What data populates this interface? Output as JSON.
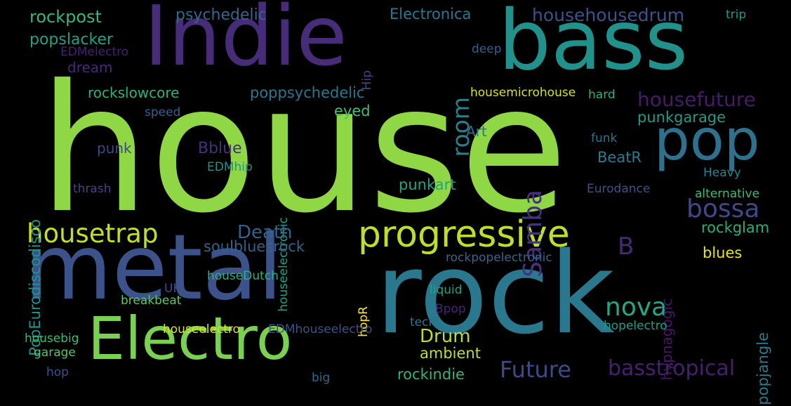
{
  "cloud": {
    "words": [
      {
        "text": "house",
        "color": "#8fd744",
        "vertical": false
      },
      {
        "text": "rock",
        "color": "#2a788e",
        "vertical": false
      },
      {
        "text": "metal",
        "color": "#3b528b",
        "vertical": false
      },
      {
        "text": "Indie",
        "color": "#472c7a",
        "vertical": false
      },
      {
        "text": "bass",
        "color": "#21918c",
        "vertical": false
      },
      {
        "text": "Electro",
        "color": "#7ad151",
        "vertical": false
      },
      {
        "text": "pop",
        "color": "#2c728e",
        "vertical": false
      },
      {
        "text": "progressive",
        "color": "#bddf26",
        "vertical": false
      },
      {
        "text": "housetrap",
        "color": "#c2df23",
        "vertical": false
      },
      {
        "text": "bossa",
        "color": "#3e4989",
        "vertical": false
      },
      {
        "text": "nova",
        "color": "#22a884",
        "vertical": false
      },
      {
        "text": "Future",
        "color": "#3e4989",
        "vertical": false
      },
      {
        "text": "basstropical",
        "color": "#481f70",
        "vertical": false
      },
      {
        "text": "Samba",
        "color": "#46327e",
        "vertical": true
      },
      {
        "text": "room",
        "color": "#27808e",
        "vertical": true
      },
      {
        "text": "B",
        "color": "#482878",
        "vertical": false
      },
      {
        "text": "Drum",
        "color": "#bade28",
        "vertical": false
      },
      {
        "text": "housefuture",
        "color": "#481a6c",
        "vertical": false
      },
      {
        "text": "househousedrum",
        "color": "#3b528b",
        "vertical": false
      },
      {
        "text": "rockpost",
        "color": "#35b779",
        "vertical": false
      },
      {
        "text": "psychedelic",
        "color": "#31688e",
        "vertical": false
      },
      {
        "text": "Electronica",
        "color": "#2a788e",
        "vertical": false
      },
      {
        "text": "trip",
        "color": "#1f988b",
        "vertical": false
      },
      {
        "text": "popslacker",
        "color": "#1fa187",
        "vertical": false
      },
      {
        "text": "EDMelectro",
        "color": "#482071",
        "vertical": false
      },
      {
        "text": "dream",
        "color": "#482878",
        "vertical": false
      },
      {
        "text": "PopEurodiscodisco",
        "color": "#1f948c",
        "vertical": true
      },
      {
        "text": "Hip",
        "color": "#404688",
        "vertical": true
      },
      {
        "text": "deep",
        "color": "#355f8d",
        "vertical": false
      },
      {
        "text": "rockslowcore",
        "color": "#2db27d",
        "vertical": false
      },
      {
        "text": "poppsychedelic",
        "color": "#2a788e",
        "vertical": false
      },
      {
        "text": "housemicrohouse",
        "color": "#d8e219",
        "vertical": false
      },
      {
        "text": "hard",
        "color": "#2ab07f",
        "vertical": false
      },
      {
        "text": "speed",
        "color": "#33638d",
        "vertical": false
      },
      {
        "text": "eyed",
        "color": "#44bf70",
        "vertical": false
      },
      {
        "text": "punkgarage",
        "color": "#1e9b8a",
        "vertical": false
      },
      {
        "text": "Art",
        "color": "#2c728e",
        "vertical": false
      },
      {
        "text": "funk",
        "color": "#2c728e",
        "vertical": false
      },
      {
        "text": "punk",
        "color": "#3e4989",
        "vertical": false
      },
      {
        "text": "Bblue",
        "color": "#472f7d",
        "vertical": false
      },
      {
        "text": "EDMhip",
        "color": "#21918c",
        "vertical": false
      },
      {
        "text": "BeatR",
        "color": "#287c8e",
        "vertical": false
      },
      {
        "text": "Heavy",
        "color": "#25848e",
        "vertical": false
      },
      {
        "text": "thrash",
        "color": "#414487",
        "vertical": false
      },
      {
        "text": "houseelectronic",
        "color": "#1fa187",
        "vertical": true
      },
      {
        "text": "punkart",
        "color": "#20a486",
        "vertical": false
      },
      {
        "text": "Eurodance",
        "color": "#3b528b",
        "vertical": false
      },
      {
        "text": "alternative",
        "color": "#3bbb75",
        "vertical": false
      },
      {
        "text": "rockglam",
        "color": "#28ae80",
        "vertical": false
      },
      {
        "text": "hypnagogic",
        "color": "#481769",
        "vertical": true
      },
      {
        "text": "Death",
        "color": "#34618d",
        "vertical": false
      },
      {
        "text": "soulbluesrock",
        "color": "#33638d",
        "vertical": false
      },
      {
        "text": "blues",
        "color": "#e5e419",
        "vertical": false
      },
      {
        "text": "popjangle",
        "color": "#297b8e",
        "vertical": true
      },
      {
        "text": "rockpopelectronic",
        "color": "#31688e",
        "vertical": false
      },
      {
        "text": "houseDutch",
        "color": "#2db27d",
        "vertical": false
      },
      {
        "text": "UK",
        "color": "#3b528b",
        "vertical": false
      },
      {
        "text": "liquid",
        "color": "#20a386",
        "vertical": false
      },
      {
        "text": "hopR",
        "color": "#fde725",
        "vertical": true
      },
      {
        "text": "breakbeat",
        "color": "#5ec962",
        "vertical": false
      },
      {
        "text": "Bpop",
        "color": "#482475",
        "vertical": false
      },
      {
        "text": "tech",
        "color": "#2c728e",
        "vertical": false
      },
      {
        "text": "hopelectro",
        "color": "#1f9e89",
        "vertical": false
      },
      {
        "text": "housebig",
        "color": "#3bbb75",
        "vertical": false
      },
      {
        "text": "houseelectro",
        "color": "#dde318",
        "vertical": false
      },
      {
        "text": "EDMhouseelectro",
        "color": "#3b528b",
        "vertical": false
      },
      {
        "text": "garage",
        "color": "#52c569",
        "vertical": false
      },
      {
        "text": "ambient",
        "color": "#bddf26",
        "vertical": false
      },
      {
        "text": "rockindie",
        "color": "#2fb47c",
        "vertical": false
      },
      {
        "text": "hop",
        "color": "#3b528b",
        "vertical": false
      },
      {
        "text": "big",
        "color": "#31688e",
        "vertical": false
      }
    ]
  }
}
